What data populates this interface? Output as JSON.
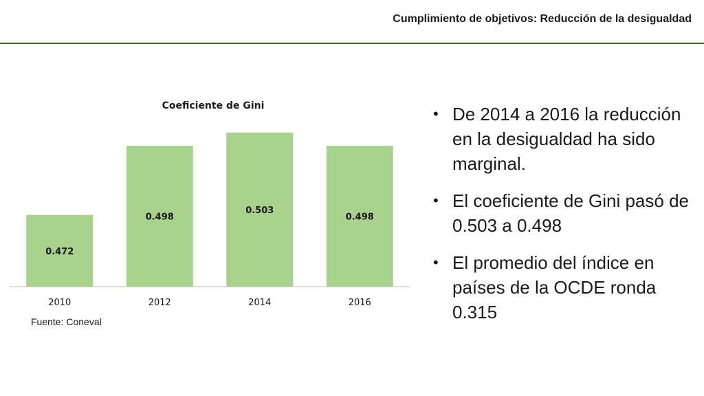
{
  "header": {
    "title": "Cumplimiento de objetivos: Reducción de la desigualdad"
  },
  "chart_data": {
    "type": "bar",
    "title": "Coeficiente de Gini",
    "categories": [
      "2010",
      "2012",
      "2014",
      "2016"
    ],
    "values": [
      0.472,
      0.498,
      0.503,
      0.498
    ],
    "data_labels": [
      "0.472",
      "0.498",
      "0.503",
      "0.498"
    ],
    "bar_color": "#a9d18e",
    "ylim": [
      0.445,
      0.505
    ],
    "grid": false,
    "legend": "none"
  },
  "source": "Fuente: Coneval",
  "bullets": [
    "De 2014 a 2016 la reducción en la desigualdad ha sido marginal.",
    "El coeficiente de Gini pasó de 0.503 a 0.498",
    "El promedio del índice en países de la OCDE ronda 0.315"
  ]
}
